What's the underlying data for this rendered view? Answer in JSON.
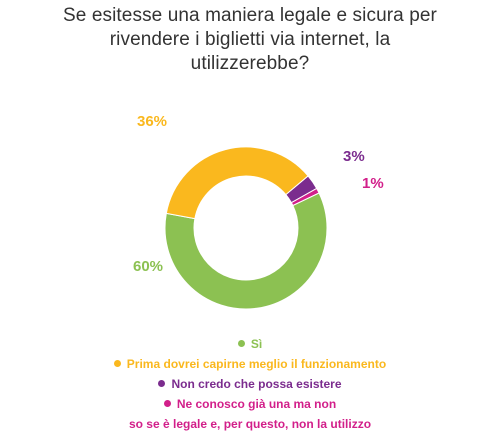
{
  "title": {
    "line1": "Se esitesse una maniera legale e sicura per",
    "line2": "rivendere i biglietti via internet, la",
    "line3": "utilizzerebbe?"
  },
  "chart_data": {
    "type": "pie",
    "donut": true,
    "categories": [
      "Sì",
      "Prima dovrei capirne meglio il funzionamento",
      "Non credo che possa esistere",
      "Ne conosco già una ma non so se è legale e, per questo, non la utilizzo"
    ],
    "values": [
      60,
      36,
      3,
      1
    ],
    "value_labels": [
      "60%",
      "36%",
      "3%",
      "1%"
    ],
    "colors": [
      "#8cc152",
      "#fab81e",
      "#7b2c8e",
      "#d21f8a"
    ],
    "legend_position": "bottom"
  },
  "legend": {
    "items": [
      {
        "line1": "Sì"
      },
      {
        "line1": "Prima dovrei capirne meglio il funzionamento"
      },
      {
        "line1": "Non credo che possa esistere"
      },
      {
        "line1": "Ne conosco già una ma non",
        "line2": "so se è legale e, per questo, non la utilizzo"
      }
    ]
  }
}
